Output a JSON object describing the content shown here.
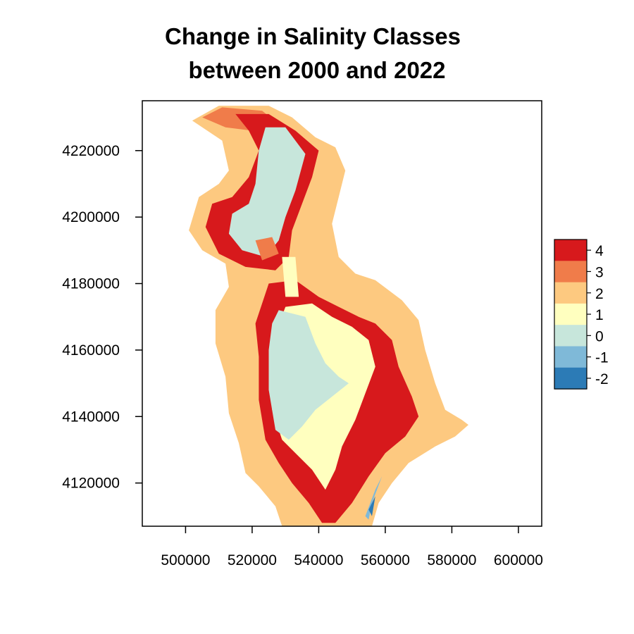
{
  "title_lines": [
    "Change in Salinity Classes",
    "between 2000 and 2022"
  ],
  "x_axis": {
    "ticks": [
      500000,
      520000,
      540000,
      560000,
      580000,
      600000
    ],
    "range": [
      487000,
      607000
    ]
  },
  "y_axis": {
    "ticks": [
      4120000,
      4140000,
      4160000,
      4180000,
      4200000,
      4220000
    ],
    "range": [
      4107000,
      4235000
    ]
  },
  "legend": {
    "placement": "right",
    "classes": [
      {
        "value": 4,
        "label": "4",
        "color": "#d7191c"
      },
      {
        "value": 3,
        "label": "3",
        "color": "#f07c4a"
      },
      {
        "value": 2,
        "label": "2",
        "color": "#fdc980"
      },
      {
        "value": 1,
        "label": "1",
        "color": "#ffffbf"
      },
      {
        "value": 0,
        "label": "0",
        "color": "#c7e6db"
      },
      {
        "value": -1,
        "label": "-1",
        "color": "#7fb9d8"
      },
      {
        "value": -2,
        "label": "-2",
        "color": "#2c7bb6"
      }
    ]
  },
  "map_data": {
    "type": "raster",
    "units": "UTM easting / northing (m)",
    "regions": [
      {
        "class": 2,
        "name": "outer-shore-band",
        "points": [
          [
            510000,
            4233500
          ],
          [
            525000,
            4233500
          ],
          [
            532000,
            4230000
          ],
          [
            539000,
            4224000
          ],
          [
            545000,
            4221000
          ],
          [
            548000,
            4214000
          ],
          [
            546000,
            4206000
          ],
          [
            544000,
            4198000
          ],
          [
            546000,
            4188000
          ],
          [
            551000,
            4183000
          ],
          [
            557000,
            4181000
          ],
          [
            565000,
            4175000
          ],
          [
            570000,
            4169000
          ],
          [
            572000,
            4160000
          ],
          [
            575000,
            4150000
          ],
          [
            578000,
            4142000
          ],
          [
            583000,
            4139000
          ],
          [
            585000,
            4137500
          ],
          [
            581000,
            4134000
          ],
          [
            575000,
            4131000
          ],
          [
            567000,
            4126000
          ],
          [
            562000,
            4120000
          ],
          [
            558000,
            4114000
          ],
          [
            556000,
            4107000
          ],
          [
            529000,
            4107000
          ],
          [
            527000,
            4113000
          ],
          [
            522000,
            4119000
          ],
          [
            518000,
            4123000
          ],
          [
            516000,
            4132000
          ],
          [
            513000,
            4141000
          ],
          [
            512000,
            4152000
          ],
          [
            509000,
            4162000
          ],
          [
            509000,
            4172000
          ],
          [
            513000,
            4179000
          ],
          [
            512000,
            4186000
          ],
          [
            505000,
            4190000
          ],
          [
            501000,
            4196000
          ],
          [
            504000,
            4206000
          ],
          [
            510000,
            4210000
          ],
          [
            513000,
            4214000
          ],
          [
            511000,
            4223000
          ],
          [
            502000,
            4229000
          ]
        ]
      },
      {
        "class": 3,
        "name": "northern-fringe",
        "points": [
          [
            511000,
            4233000
          ],
          [
            523000,
            4232000
          ],
          [
            528000,
            4228000
          ],
          [
            520000,
            4226000
          ],
          [
            512000,
            4227000
          ],
          [
            505000,
            4230000
          ]
        ]
      },
      {
        "class": 4,
        "name": "north-red-ring",
        "points": [
          [
            515000,
            4231000
          ],
          [
            525000,
            4231000
          ],
          [
            533000,
            4226000
          ],
          [
            540000,
            4220000
          ],
          [
            538000,
            4212000
          ],
          [
            535000,
            4204000
          ],
          [
            532000,
            4196000
          ],
          [
            531000,
            4188000
          ],
          [
            527000,
            4184000
          ],
          [
            518000,
            4185000
          ],
          [
            510000,
            4189000
          ],
          [
            506000,
            4197000
          ],
          [
            508000,
            4204000
          ],
          [
            514000,
            4206000
          ],
          [
            519000,
            4212000
          ],
          [
            522000,
            4220000
          ],
          [
            519000,
            4226000
          ]
        ]
      },
      {
        "class": 0,
        "name": "north-arm-water",
        "points": [
          [
            524000,
            4227000
          ],
          [
            530000,
            4227000
          ],
          [
            536000,
            4219000
          ],
          [
            533000,
            4208000
          ],
          [
            530000,
            4200000
          ],
          [
            528000,
            4193000
          ],
          [
            524000,
            4188000
          ],
          [
            517000,
            4190000
          ],
          [
            513000,
            4195000
          ],
          [
            514000,
            4201000
          ],
          [
            519000,
            4204000
          ],
          [
            521000,
            4210000
          ],
          [
            522000,
            4220000
          ]
        ]
      },
      {
        "class": 3,
        "name": "north-inner-patch",
        "points": [
          [
            521000,
            4193000
          ],
          [
            526000,
            4194000
          ],
          [
            528000,
            4189000
          ],
          [
            523000,
            4187000
          ]
        ]
      },
      {
        "class": 4,
        "name": "south-red-band",
        "points": [
          [
            525000,
            4180000
          ],
          [
            533000,
            4181000
          ],
          [
            540000,
            4176000
          ],
          [
            546000,
            4173000
          ],
          [
            552000,
            4170000
          ],
          [
            557000,
            4168000
          ],
          [
            562000,
            4163000
          ],
          [
            564000,
            4155000
          ],
          [
            568000,
            4146000
          ],
          [
            570000,
            4140000
          ],
          [
            566000,
            4134000
          ],
          [
            560000,
            4129000
          ],
          [
            555000,
            4122000
          ],
          [
            550000,
            4114000
          ],
          [
            545000,
            4108000
          ],
          [
            541000,
            4108000
          ],
          [
            537000,
            4114000
          ],
          [
            532000,
            4120000
          ],
          [
            528000,
            4126000
          ],
          [
            524000,
            4133000
          ],
          [
            522000,
            4145000
          ],
          [
            522000,
            4158000
          ],
          [
            521000,
            4168000
          ]
        ]
      },
      {
        "class": 1,
        "name": "south-yellow-zone",
        "points": [
          [
            530000,
            4173000
          ],
          [
            538000,
            4174000
          ],
          [
            544000,
            4170000
          ],
          [
            550000,
            4167000
          ],
          [
            555000,
            4163000
          ],
          [
            557000,
            4155000
          ],
          [
            554000,
            4147000
          ],
          [
            551000,
            4139000
          ],
          [
            547000,
            4131000
          ],
          [
            545000,
            4124000
          ],
          [
            542000,
            4118000
          ],
          [
            538000,
            4124000
          ],
          [
            533000,
            4129000
          ],
          [
            529000,
            4133000
          ],
          [
            526000,
            4142000
          ],
          [
            526000,
            4155000
          ],
          [
            527000,
            4165000
          ]
        ]
      },
      {
        "class": 0,
        "name": "south-basin-water",
        "points": [
          [
            528000,
            4172000
          ],
          [
            536000,
            4170000
          ],
          [
            539000,
            4162000
          ],
          [
            542000,
            4156000
          ],
          [
            546000,
            4152000
          ],
          [
            549000,
            4150000
          ],
          [
            544000,
            4146000
          ],
          [
            539000,
            4142000
          ],
          [
            535000,
            4137000
          ],
          [
            531000,
            4133000
          ],
          [
            527000,
            4136000
          ],
          [
            525000,
            4148000
          ],
          [
            525000,
            4160000
          ],
          [
            526000,
            4168000
          ]
        ]
      },
      {
        "class": 1,
        "name": "south-inlet",
        "points": [
          [
            529000,
            4188000
          ],
          [
            533000,
            4188000
          ],
          [
            534000,
            4176000
          ],
          [
            530000,
            4176000
          ]
        ]
      },
      {
        "class": -1,
        "name": "southeast-shore",
        "points": [
          [
            557000,
            4118000
          ],
          [
            559000,
            4122000
          ],
          [
            556000,
            4114000
          ],
          [
            555000,
            4109000
          ],
          [
            554000,
            4110000
          ]
        ]
      },
      {
        "class": -2,
        "name": "southeast-deep",
        "points": [
          [
            555000,
            4112000
          ],
          [
            557000,
            4116000
          ],
          [
            556000,
            4110000
          ]
        ]
      }
    ]
  }
}
